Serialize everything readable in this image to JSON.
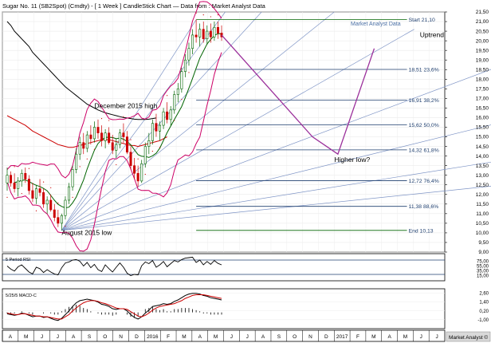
{
  "header": {
    "title": "Sugar No. 11 (SB2Spot) (Cmdty) - [ 1 Week ] CandleStick Chart — Data from : Market Analyst Data",
    "watermark": "Market Analyst Data",
    "footer_watermark": "Market Analyst ©"
  },
  "chart_data": [
    {
      "type": "candlestick",
      "title": "Sugar No. 11 (SB2Spot) (Cmdty) - [ 1 Week ] CandleStick Chart",
      "ylim": [
        9.0,
        21.5
      ],
      "y_ticks": [
        "21,50",
        "21,00",
        "20,50",
        "20,00",
        "19,50",
        "19,00",
        "18,50",
        "18,00",
        "17,50",
        "17,00",
        "16,50",
        "16,00",
        "15,50",
        "15,00",
        "14,50",
        "14,00",
        "13,50",
        "13,00",
        "12,50",
        "12,00",
        "11,50",
        "11,00",
        "10,50",
        "10,00",
        "9,50",
        "9,00"
      ],
      "x_months": [
        "A",
        "M",
        "J",
        "J",
        "A",
        "S",
        "O",
        "N",
        "D",
        "2016",
        "F",
        "M",
        "A",
        "M",
        "J",
        "J",
        "A",
        "S",
        "O",
        "N",
        "D",
        "2017",
        "F",
        "M",
        "A",
        "M",
        "J",
        "J"
      ],
      "series": [
        {
          "name": "Candles",
          "color": "#006400",
          "down_color": "#cc0000"
        },
        {
          "name": "Moving average (long)",
          "color": "#000000"
        },
        {
          "name": "Moving average (mid)",
          "color": "#cc0000"
        },
        {
          "name": "Moving average (short)",
          "color": "#006400"
        },
        {
          "name": "Bollinger bands",
          "color": "#cc0066"
        }
      ],
      "candles": [
        [
          12.6,
          13.4,
          12.2,
          13.0
        ],
        [
          13.0,
          13.2,
          12.4,
          12.6
        ],
        [
          12.6,
          13.1,
          12.1,
          12.3
        ],
        [
          12.3,
          12.9,
          11.9,
          12.7
        ],
        [
          12.7,
          13.3,
          12.4,
          13.1
        ],
        [
          13.1,
          13.4,
          12.6,
          12.8
        ],
        [
          12.8,
          13.0,
          12.0,
          12.2
        ],
        [
          12.2,
          12.6,
          11.6,
          11.8
        ],
        [
          11.8,
          12.5,
          11.5,
          12.3
        ],
        [
          12.3,
          12.8,
          11.9,
          12.1
        ],
        [
          12.1,
          12.3,
          11.3,
          11.5
        ],
        [
          11.5,
          11.9,
          11.0,
          11.7
        ],
        [
          11.7,
          12.0,
          11.1,
          11.2
        ],
        [
          11.2,
          11.5,
          10.6,
          10.8
        ],
        [
          10.8,
          11.2,
          10.3,
          10.5
        ],
        [
          10.5,
          11.0,
          10.13,
          10.9
        ],
        [
          10.9,
          11.9,
          10.7,
          11.7
        ],
        [
          11.7,
          12.6,
          11.5,
          12.4
        ],
        [
          12.4,
          13.5,
          12.2,
          13.3
        ],
        [
          13.3,
          14.4,
          13.1,
          14.1
        ],
        [
          14.1,
          15.0,
          13.8,
          14.7
        ],
        [
          14.7,
          15.2,
          14.1,
          14.4
        ],
        [
          14.4,
          15.3,
          14.2,
          15.1
        ],
        [
          15.1,
          15.6,
          14.6,
          14.9
        ],
        [
          14.9,
          15.8,
          14.7,
          15.5
        ],
        [
          15.5,
          15.9,
          14.9,
          15.2
        ],
        [
          15.2,
          15.6,
          14.5,
          14.8
        ],
        [
          14.8,
          15.4,
          14.4,
          15.2
        ],
        [
          15.2,
          15.5,
          14.6,
          14.7
        ],
        [
          14.7,
          15.1,
          14.1,
          14.3
        ],
        [
          14.3,
          14.9,
          13.9,
          14.6
        ],
        [
          14.6,
          15.4,
          14.4,
          15.2
        ],
        [
          15.2,
          15.7,
          14.7,
          15.0
        ],
        [
          15.0,
          15.3,
          14.1,
          14.2
        ],
        [
          14.2,
          14.5,
          13.3,
          13.5
        ],
        [
          13.5,
          13.9,
          12.8,
          13.1
        ],
        [
          13.1,
          13.5,
          12.4,
          12.7
        ],
        [
          12.7,
          13.8,
          12.6,
          13.6
        ],
        [
          13.6,
          14.7,
          13.4,
          14.5
        ],
        [
          14.5,
          15.2,
          14.1,
          14.8
        ],
        [
          14.8,
          15.9,
          14.6,
          15.7
        ],
        [
          15.7,
          16.2,
          15.0,
          15.3
        ],
        [
          15.3,
          15.8,
          14.8,
          15.6
        ],
        [
          15.6,
          16.5,
          15.4,
          16.3
        ],
        [
          16.3,
          16.8,
          15.7,
          15.9
        ],
        [
          15.9,
          16.6,
          15.6,
          16.4
        ],
        [
          16.4,
          17.4,
          16.2,
          17.2
        ],
        [
          17.2,
          17.8,
          16.8,
          17.5
        ],
        [
          17.5,
          18.6,
          17.3,
          18.4
        ],
        [
          18.4,
          19.3,
          18.1,
          19.0
        ],
        [
          19.0,
          19.9,
          18.7,
          19.6
        ],
        [
          19.6,
          20.6,
          19.3,
          20.3
        ],
        [
          20.3,
          21.1,
          19.9,
          20.2
        ],
        [
          20.2,
          20.9,
          19.7,
          20.6
        ],
        [
          20.6,
          21.0,
          19.9,
          20.1
        ],
        [
          20.1,
          20.8,
          19.8,
          20.5
        ],
        [
          20.5,
          20.9,
          19.9,
          20.2
        ],
        [
          20.2,
          21.0,
          20.0,
          20.7
        ],
        [
          20.7,
          21.0,
          20.1,
          20.4
        ],
        [
          20.4,
          20.8,
          20.0,
          20.2
        ]
      ],
      "annotations": [
        {
          "text": "December 2015 high",
          "x": 24,
          "y": 16.5
        },
        {
          "text": "August 2015 low",
          "x": 15,
          "y": 9.9
        },
        {
          "text": "Uptrend",
          "x": 100,
          "y": 20.2
        },
        {
          "text": "Higher low?",
          "x": 90,
          "y": 13.7
        }
      ],
      "fib_levels": [
        {
          "label": "Start 21,10",
          "value": 21.1,
          "color": "#006400"
        },
        {
          "label": "18,51 23,6%",
          "value": 18.51,
          "color": "#1f3f6f"
        },
        {
          "label": "16,91 38,2%",
          "value": 16.91,
          "color": "#1f3f6f"
        },
        {
          "label": "15,62 50,0%",
          "value": 15.62,
          "color": "#1f3f6f"
        },
        {
          "label": "14,32 61,8%",
          "value": 14.32,
          "color": "#1f3f6f"
        },
        {
          "label": "12,72 76,4%",
          "value": 12.72,
          "color": "#1f3f6f"
        },
        {
          "label": "11,38 88,6%",
          "value": 11.38,
          "color": "#1f3f6f"
        },
        {
          "label": "End 10,13",
          "value": 10.13,
          "color": "#006400"
        }
      ],
      "projection_path": [
        [
          59,
          20.3
        ],
        [
          84,
          15.0
        ],
        [
          91,
          14.1
        ],
        [
          101,
          19.6
        ]
      ],
      "projection_color": "#9b309b",
      "grid": true
    },
    {
      "type": "line",
      "title": "5 Period RSI",
      "ylim": [
        0,
        100
      ],
      "y_ticks": [
        "75,00",
        "55,00",
        "35,00",
        "15,00"
      ],
      "ref_lines": [
        80,
        20
      ],
      "series": [
        {
          "name": "RSI",
          "color": "#000000",
          "values": [
            55,
            42,
            34,
            52,
            60,
            45,
            30,
            22,
            50,
            44,
            28,
            40,
            30,
            22,
            18,
            48,
            68,
            72,
            80,
            82,
            75,
            55,
            70,
            48,
            62,
            40,
            32,
            60,
            44,
            30,
            50,
            68,
            50,
            25,
            15,
            20,
            18,
            56,
            72,
            65,
            78,
            50,
            60,
            74,
            52,
            65,
            78,
            72,
            82,
            88,
            90,
            92,
            70,
            80,
            60,
            74,
            62,
            78,
            66,
            60
          ]
        }
      ],
      "grid": true
    },
    {
      "type": "line",
      "title": "5/25/5 MACD-C",
      "ylim": [
        -2.0,
        3.0
      ],
      "y_ticks": [
        "2,60",
        "1,40",
        "0,20",
        "-1,00"
      ],
      "series": [
        {
          "name": "MACD",
          "color": "#000000",
          "values": [
            -0.2,
            -0.3,
            -0.4,
            -0.3,
            -0.1,
            -0.2,
            -0.4,
            -0.6,
            -0.5,
            -0.5,
            -0.7,
            -0.6,
            -0.8,
            -1.0,
            -1.1,
            -0.8,
            -0.3,
            0.2,
            0.8,
            1.3,
            1.6,
            1.7,
            1.8,
            1.7,
            1.6,
            1.4,
            1.1,
            1.0,
            0.8,
            0.5,
            0.4,
            0.5,
            0.5,
            0.2,
            -0.3,
            -0.7,
            -0.9,
            -0.6,
            -0.1,
            0.3,
            0.8,
            0.9,
            1.0,
            1.2,
            1.1,
            1.2,
            1.5,
            1.7,
            2.0,
            2.3,
            2.5,
            2.6,
            2.6,
            2.5,
            2.3,
            2.2,
            2.0,
            1.9,
            1.8,
            1.7
          ]
        },
        {
          "name": "Signal",
          "color": "#cc0000",
          "values": [
            -0.1,
            -0.2,
            -0.3,
            -0.3,
            -0.2,
            -0.2,
            -0.3,
            -0.4,
            -0.5,
            -0.5,
            -0.6,
            -0.6,
            -0.7,
            -0.8,
            -0.9,
            -0.9,
            -0.6,
            -0.3,
            0.2,
            0.6,
            1.0,
            1.3,
            1.5,
            1.6,
            1.6,
            1.5,
            1.3,
            1.2,
            1.0,
            0.8,
            0.6,
            0.5,
            0.5,
            0.4,
            0.1,
            -0.2,
            -0.5,
            -0.6,
            -0.4,
            -0.1,
            0.3,
            0.6,
            0.8,
            0.9,
            1.0,
            1.1,
            1.2,
            1.4,
            1.6,
            1.9,
            2.1,
            2.3,
            2.4,
            2.4,
            2.4,
            2.3,
            2.2,
            2.1,
            2.0,
            1.9
          ]
        }
      ],
      "grid": true
    }
  ]
}
